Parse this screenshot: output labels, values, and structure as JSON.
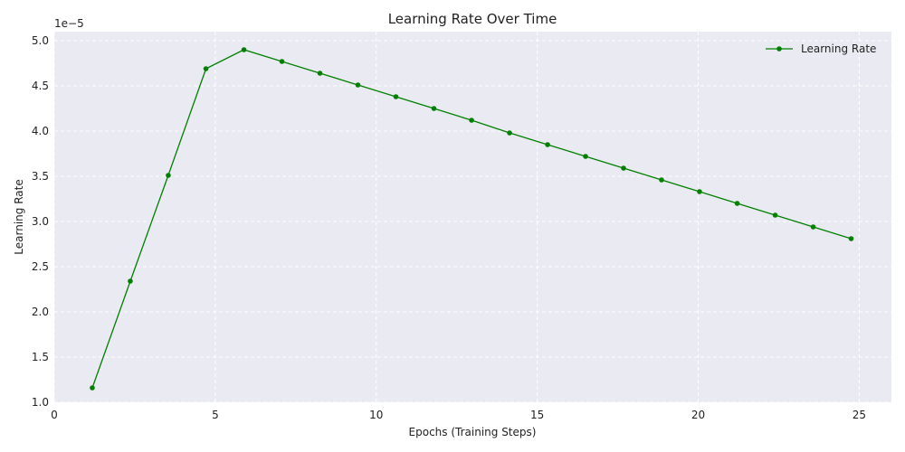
{
  "chart_data": {
    "type": "line",
    "title": "Learning Rate Over Time",
    "xlabel": "Epochs (Training Steps)",
    "ylabel": "Learning Rate",
    "y_offset_label": "1e−5",
    "xlim": [
      0,
      26
    ],
    "ylim": [
      1.0,
      5.1
    ],
    "x_ticks": [
      0,
      5,
      10,
      15,
      20,
      25
    ],
    "x_tick_labels": [
      "0",
      "5",
      "10",
      "15",
      "20",
      "25"
    ],
    "y_ticks": [
      1.0,
      1.5,
      2.0,
      2.5,
      3.0,
      3.5,
      4.0,
      4.5,
      5.0
    ],
    "y_tick_labels": [
      "1.0",
      "1.5",
      "2.0",
      "2.5",
      "3.0",
      "3.5",
      "4.0",
      "4.5",
      "5.0"
    ],
    "grid": true,
    "legend_position": "top-right",
    "series": [
      {
        "name": "Learning Rate",
        "color": "#008000",
        "x": [
          1.18,
          2.36,
          3.54,
          4.71,
          5.89,
          7.07,
          8.25,
          9.43,
          10.61,
          11.79,
          12.96,
          14.14,
          15.32,
          16.5,
          17.68,
          18.86,
          20.04,
          21.21,
          22.39,
          23.57,
          24.75
        ],
        "y": [
          1.16,
          2.34,
          3.51,
          4.69,
          4.9,
          4.77,
          4.64,
          4.51,
          4.38,
          4.25,
          4.12,
          3.98,
          3.85,
          3.72,
          3.59,
          3.46,
          3.33,
          3.2,
          3.07,
          2.94,
          2.81
        ]
      }
    ]
  },
  "colors": {
    "plot_background": "#eaeaf2",
    "grid": "#ffffff",
    "line": "#008000"
  }
}
